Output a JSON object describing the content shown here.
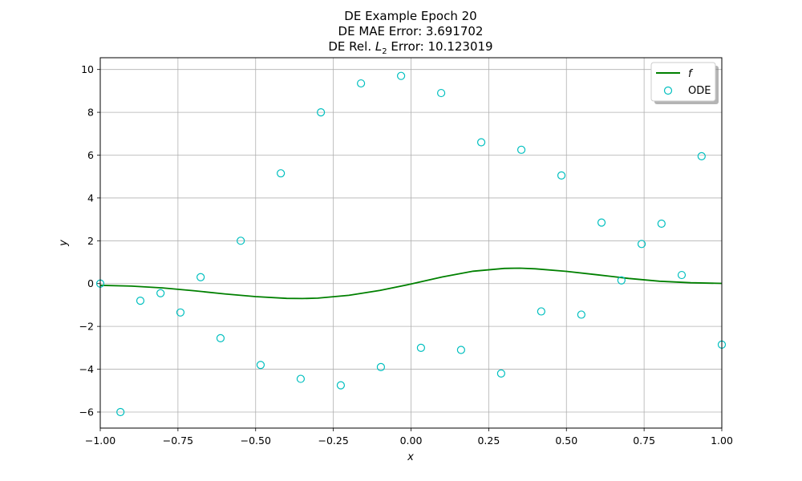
{
  "chart_data": {
    "type": "line",
    "title_lines": [
      "DE Example Epoch 20",
      "DE MAE Error: 3.691702",
      "DE Rel. L2 Error: 10.123019"
    ],
    "title_l2": {
      "prefix": "DE Rel. ",
      "symbol": "L",
      "subscript": "2",
      "suffix": " Error: 10.123019"
    },
    "xlabel": "x",
    "ylabel": "y",
    "xlim": [
      -1.0,
      1.0
    ],
    "ylim": [
      -6.75,
      10.55
    ],
    "xticks": [
      -1.0,
      -0.75,
      -0.5,
      -0.25,
      0.0,
      0.25,
      0.5,
      0.75,
      1.0
    ],
    "xtick_labels": [
      "−1.00",
      "−0.75",
      "−0.50",
      "−0.25",
      "0.00",
      "0.25",
      "0.50",
      "0.75",
      "1.00"
    ],
    "yticks": [
      -6,
      -4,
      -2,
      0,
      2,
      4,
      6,
      8,
      10
    ],
    "ytick_labels": [
      "−6",
      "−4",
      "−2",
      "0",
      "2",
      "4",
      "6",
      "8",
      "10"
    ],
    "grid": true,
    "legend_position": "top-right",
    "series": [
      {
        "name": "f",
        "kind": "line",
        "color": "#008000",
        "x": [
          -1.0,
          -0.9,
          -0.8,
          -0.7,
          -0.6,
          -0.5,
          -0.4,
          -0.35,
          -0.3,
          -0.2,
          -0.1,
          0.0,
          0.1,
          0.2,
          0.3,
          0.35,
          0.4,
          0.5,
          0.6,
          0.7,
          0.8,
          0.9,
          1.0
        ],
        "y": [
          -0.08,
          -0.12,
          -0.2,
          -0.33,
          -0.48,
          -0.61,
          -0.69,
          -0.7,
          -0.68,
          -0.55,
          -0.32,
          -0.02,
          0.31,
          0.58,
          0.71,
          0.72,
          0.69,
          0.57,
          0.41,
          0.24,
          0.11,
          0.04,
          0.01
        ]
      },
      {
        "name": "ODE",
        "kind": "scatter",
        "color": "#00bfbf",
        "x": [
          -1.0,
          -0.935,
          -0.871,
          -0.806,
          -0.742,
          -0.677,
          -0.613,
          -0.548,
          -0.484,
          -0.419,
          -0.355,
          -0.29,
          -0.226,
          -0.161,
          -0.097,
          -0.032,
          0.032,
          0.097,
          0.161,
          0.226,
          0.29,
          0.355,
          0.419,
          0.484,
          0.548,
          0.613,
          0.677,
          0.742,
          0.806,
          0.871,
          0.935,
          1.0
        ],
        "y": [
          0.0,
          -6.0,
          -0.8,
          -0.45,
          -1.35,
          0.3,
          -2.55,
          2.0,
          -3.8,
          5.15,
          -4.45,
          8.0,
          -4.75,
          9.35,
          -3.9,
          9.7,
          -3.0,
          8.9,
          -3.1,
          6.6,
          -4.2,
          6.25,
          -1.3,
          5.05,
          -1.45,
          2.85,
          0.15,
          1.85,
          2.8,
          0.4,
          5.95,
          -2.85
        ]
      }
    ]
  }
}
